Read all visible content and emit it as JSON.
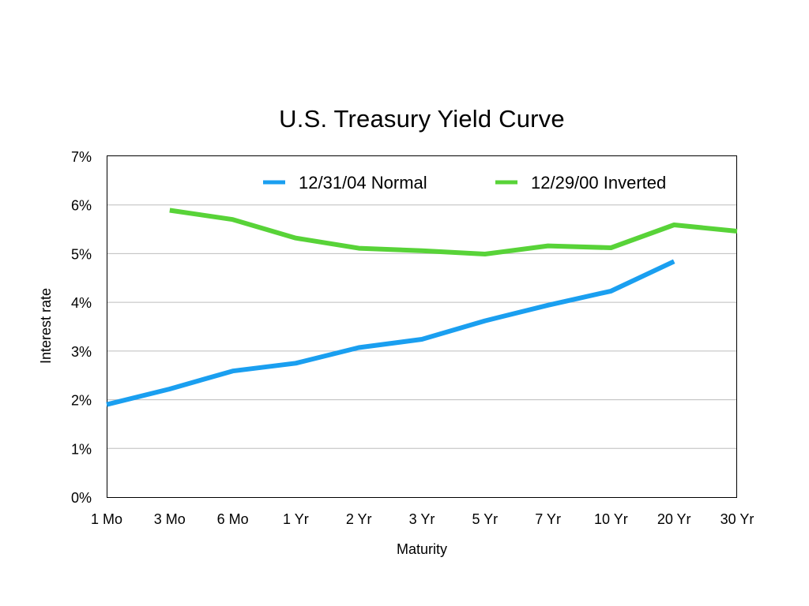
{
  "chart_data": {
    "type": "line",
    "title": "U.S. Treasury Yield Curve",
    "xlabel": "Maturity",
    "ylabel": "Interest rate",
    "categories": [
      "1 Mo",
      "3 Mo",
      "6 Mo",
      "1 Yr",
      "2 Yr",
      "3 Yr",
      "5 Yr",
      "7 Yr",
      "10 Yr",
      "20 Yr",
      "30 Yr"
    ],
    "ylim": [
      0,
      7
    ],
    "yticks": [
      "0%",
      "1%",
      "2%",
      "3%",
      "4%",
      "5%",
      "6%",
      "7%"
    ],
    "grid": true,
    "legend_position": "top",
    "series": [
      {
        "name": "12/31/04 Normal",
        "color": "#1a9ff0",
        "values": [
          1.9,
          2.22,
          2.59,
          2.75,
          3.07,
          3.24,
          3.62,
          3.94,
          4.23,
          4.84,
          null
        ]
      },
      {
        "name": "12/29/00 Inverted",
        "color": "#58d338",
        "values": [
          null,
          5.89,
          5.7,
          5.32,
          5.11,
          5.06,
          4.99,
          5.16,
          5.12,
          5.59,
          5.46
        ]
      }
    ]
  }
}
